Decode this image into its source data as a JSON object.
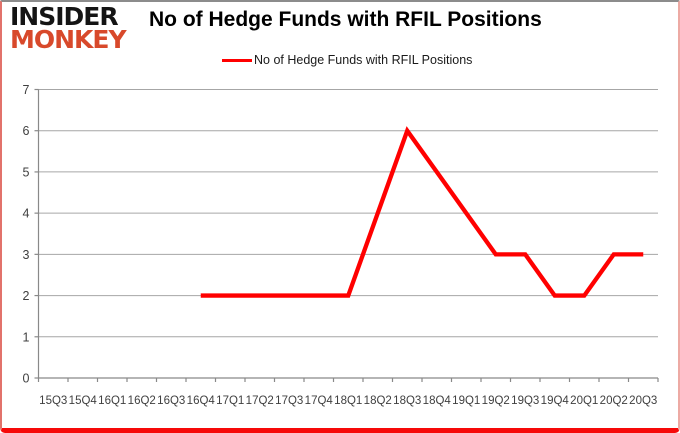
{
  "logo": {
    "line1": "INSIDER",
    "line2": "MONKEY"
  },
  "header": {
    "title": "No of Hedge Funds with RFIL Positions"
  },
  "legend": {
    "label": "No of Hedge Funds with RFIL Positions"
  },
  "colors": {
    "line": "#ff0000",
    "grid": "#a6a6a6",
    "axis": "#898989",
    "tick_label": "#3f3f3f",
    "logo_black": "#141414",
    "logo_red": "#d8492b",
    "border_bottom": "#f60909"
  },
  "chart_data": {
    "type": "line",
    "title": "No of Hedge Funds with RFIL Positions",
    "xlabel": "",
    "ylabel": "",
    "categories": [
      "15Q3",
      "15Q4",
      "16Q1",
      "16Q2",
      "16Q3",
      "16Q4",
      "17Q1",
      "17Q2",
      "17Q3",
      "17Q4",
      "18Q1",
      "18Q2",
      "18Q3",
      "18Q4",
      "19Q1",
      "19Q2",
      "19Q3",
      "19Q4",
      "20Q1",
      "20Q2",
      "20Q3"
    ],
    "series": [
      {
        "name": "No of Hedge Funds with RFIL Positions",
        "color": "#ff0000",
        "values": [
          null,
          null,
          null,
          null,
          null,
          2,
          2,
          2,
          2,
          2,
          2,
          4,
          6,
          5,
          4,
          3,
          3,
          2,
          2,
          3,
          3
        ]
      }
    ],
    "ylim": [
      0,
      7
    ],
    "yticks": [
      0,
      1,
      2,
      3,
      4,
      5,
      6,
      7
    ],
    "grid": true,
    "legend_position": "top-center"
  }
}
